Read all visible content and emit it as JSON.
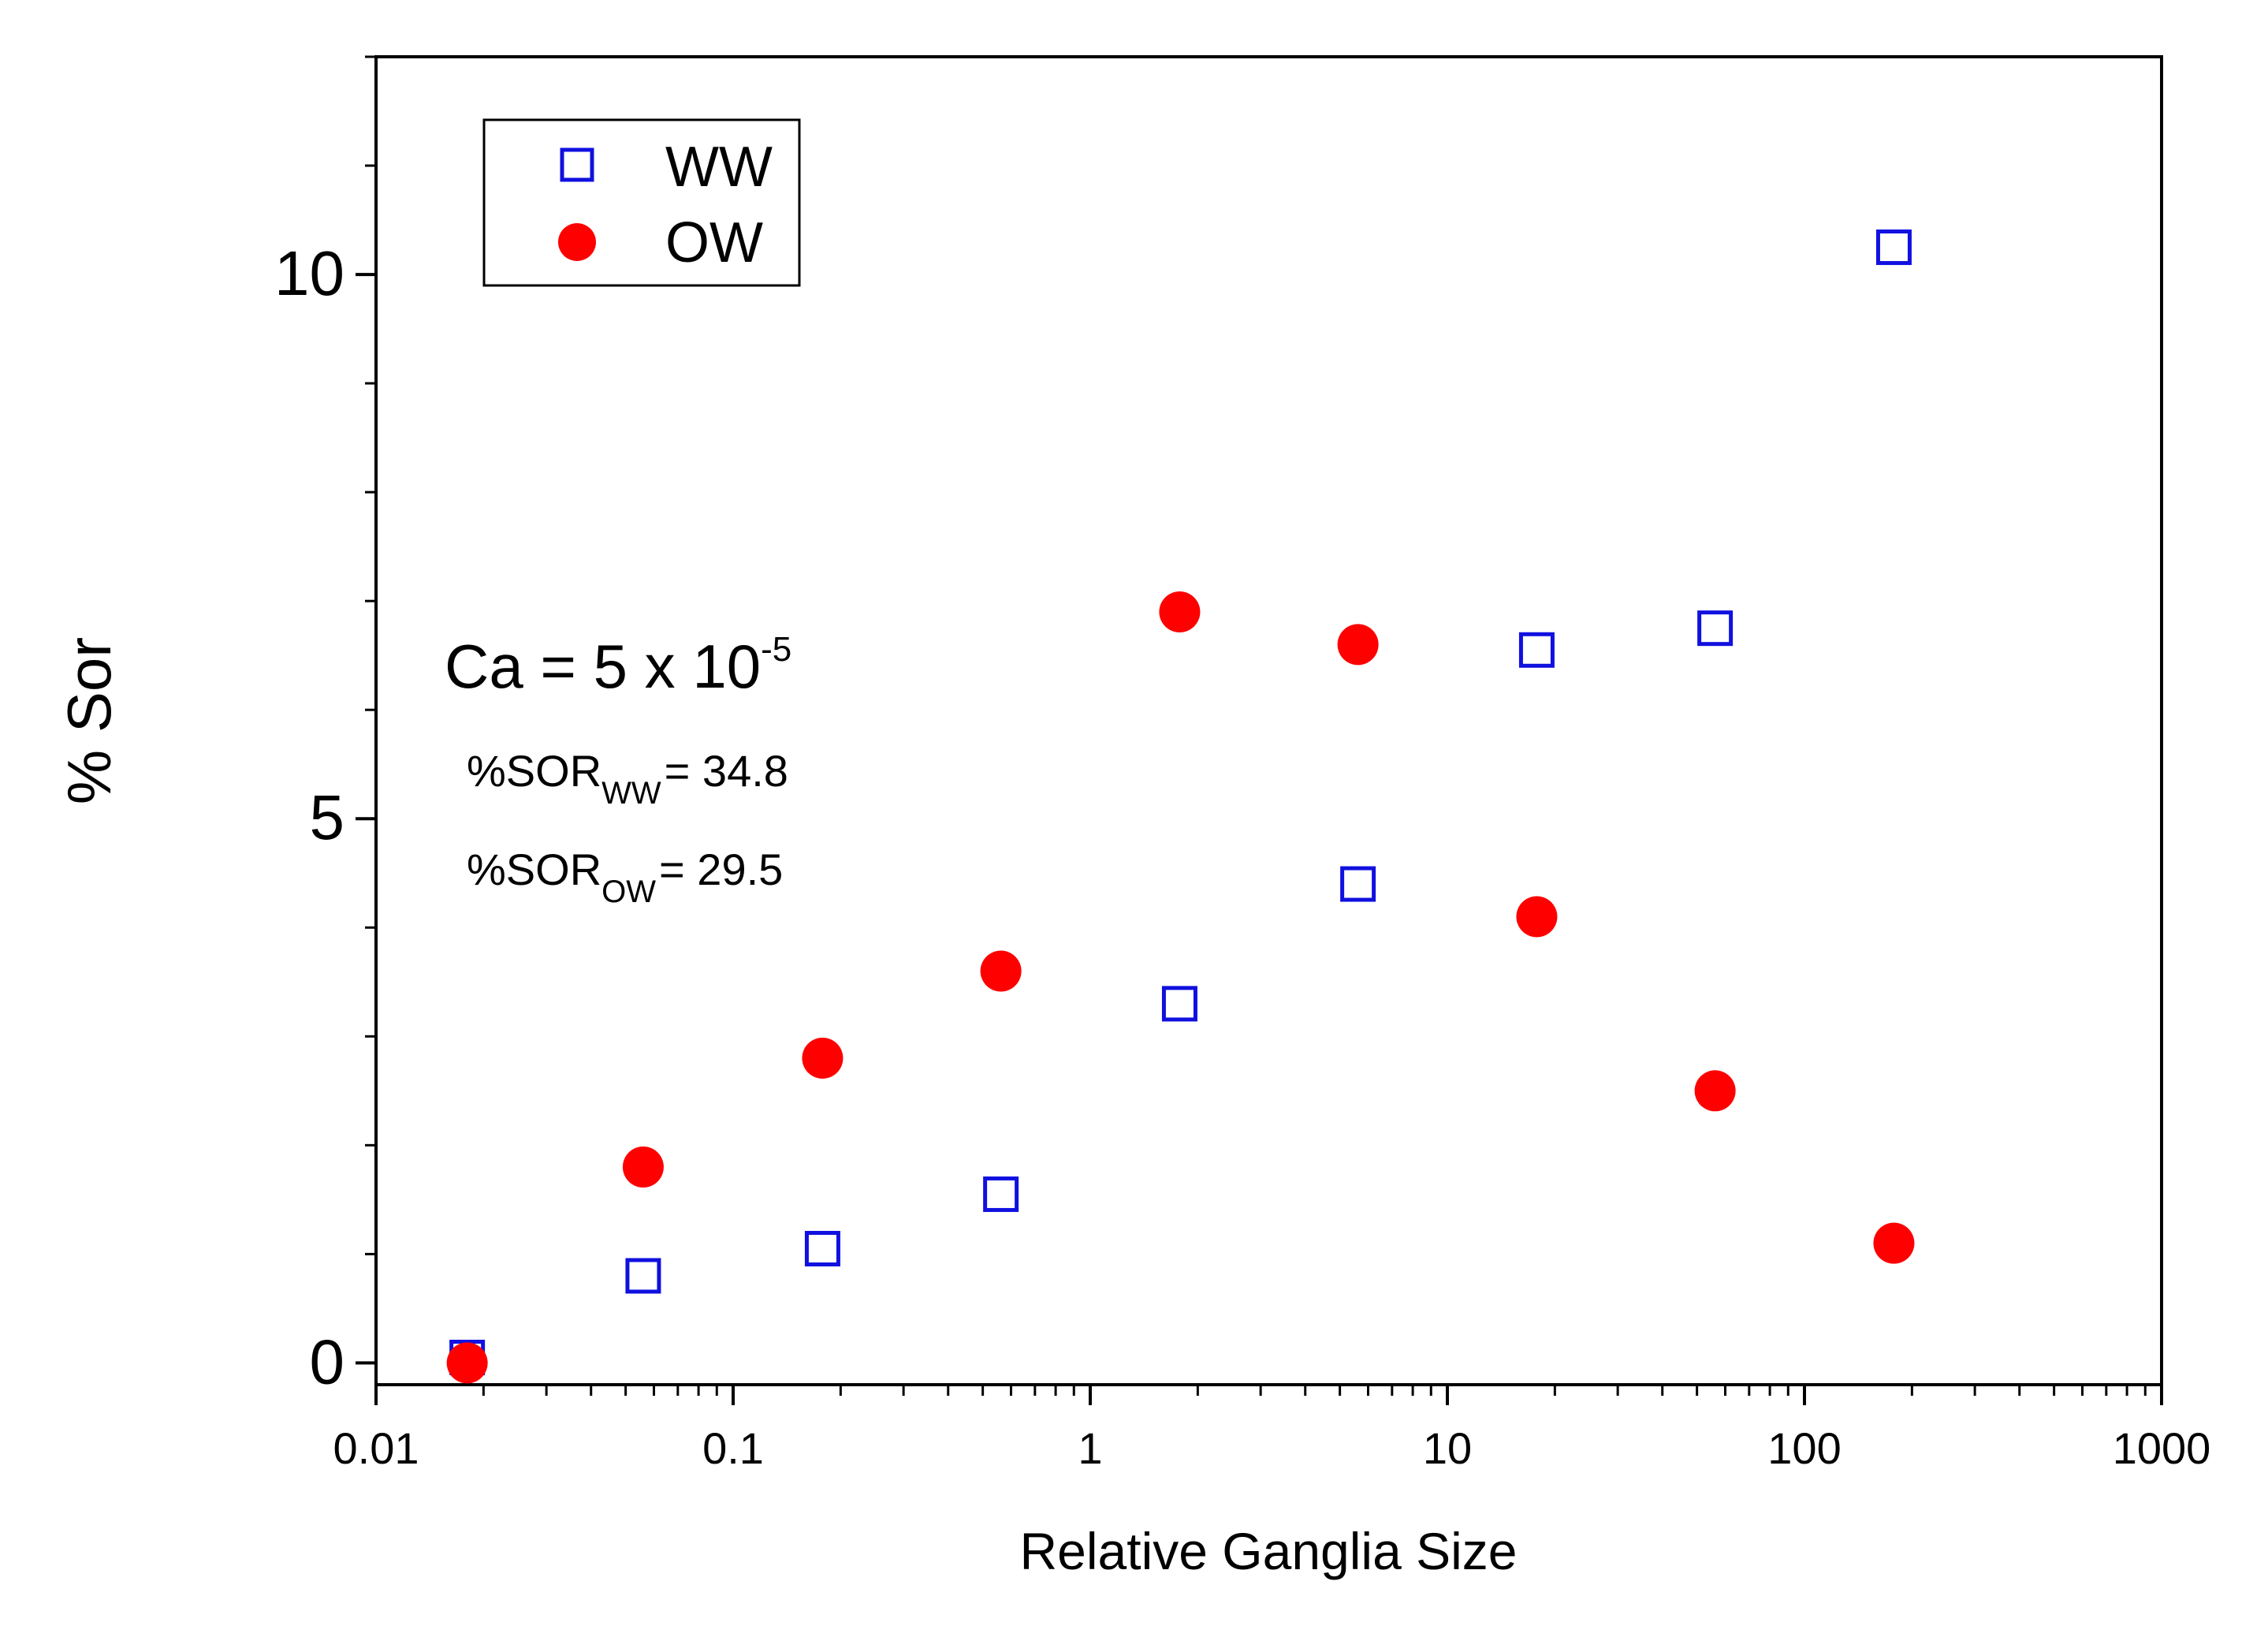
{
  "chart_data": {
    "type": "scatter",
    "title": "",
    "xlabel": "Relative Ganglia Size",
    "ylabel": "% Sor",
    "xscale": "log",
    "xlim": [
      0.01,
      1000
    ],
    "ylim": [
      -0.2,
      12
    ],
    "x_ticks": [
      {
        "value": 0.01,
        "label": "0.01"
      },
      {
        "value": 0.1,
        "label": "0.1"
      },
      {
        "value": 1,
        "label": "1"
      },
      {
        "value": 10,
        "label": "10"
      },
      {
        "value": 100,
        "label": "100"
      },
      {
        "value": 1000,
        "label": "1000"
      }
    ],
    "y_ticks": [
      {
        "value": 0,
        "label": "0"
      },
      {
        "value": 5,
        "label": "5"
      },
      {
        "value": 10,
        "label": "10"
      }
    ],
    "y_minor_step": 1,
    "grid": false,
    "legend_position": "top-left",
    "series": [
      {
        "name": "WW",
        "marker": "open-square",
        "color": "#1010e0",
        "x": [
          0.018,
          0.056,
          0.178,
          0.562,
          1.78,
          5.62,
          17.8,
          56.2,
          178
        ],
        "y": [
          0.05,
          0.8,
          1.05,
          1.55,
          3.3,
          4.4,
          6.55,
          6.75,
          10.25
        ]
      },
      {
        "name": "OW",
        "marker": "filled-circle",
        "color": "#ff0000",
        "x": [
          0.018,
          0.056,
          0.178,
          0.562,
          1.78,
          5.62,
          17.8,
          56.2,
          178
        ],
        "y": [
          0.0,
          1.8,
          2.8,
          3.6,
          6.9,
          6.6,
          4.1,
          2.5,
          1.1
        ]
      }
    ],
    "annotations": {
      "ca_base": "Ca = 5 x 10",
      "ca_exp": "-5",
      "sor_ww_main": "%SOR",
      "sor_ww_sub": "WW",
      "sor_ww_value": "= 34.8",
      "sor_ow_main": "%SOR",
      "sor_ow_sub": "OW",
      "sor_ow_value": "= 29.5"
    }
  }
}
